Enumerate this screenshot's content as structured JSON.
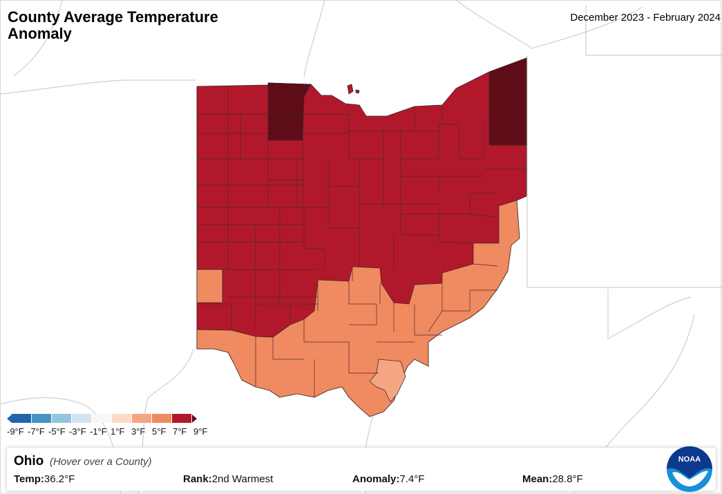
{
  "header": {
    "title": "County Average Temperature Anomaly",
    "date_range": "December 2023 - February 2024"
  },
  "colors": {
    "cold_9": "#2166ac",
    "cold_7": "#4393c3",
    "cold_5": "#92c5de",
    "cold_3": "#d1e5f0",
    "near_0": "#f7f7f7",
    "warm_3": "#fddbc7",
    "warm_5": "#f4a582",
    "warm_7": "#f08a60",
    "warm_9": "#b2182b",
    "warm_max": "#5e0c18",
    "land_border": "#c8c8c8"
  },
  "legend": {
    "labels": [
      "-9°F",
      "-7°F",
      "-5°F",
      "-3°F",
      "-1°F",
      "1°F",
      "3°F",
      "5°F",
      "7°F",
      "9°F"
    ]
  },
  "info": {
    "state": "Ohio",
    "hint": "(Hover over a County)",
    "temp_label": "Temp:",
    "temp_value": "36.2°F",
    "rank_label": "Rank:",
    "rank_value": "2nd Warmest",
    "anomaly_label": "Anomaly:",
    "anomaly_value": "7.4°F",
    "mean_label": "Mean:",
    "mean_value": "28.8°F"
  },
  "logo": {
    "text": "NOAA",
    "icon": "noaa-logo-icon"
  }
}
